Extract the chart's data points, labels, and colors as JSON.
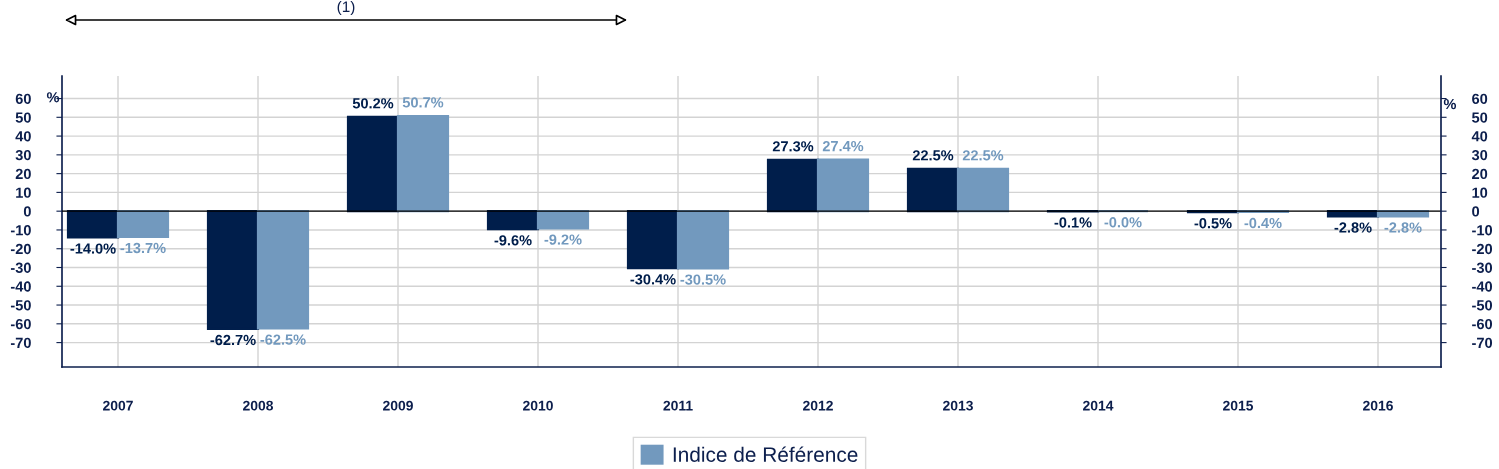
{
  "chart_data": {
    "type": "bar",
    "annotations": [
      "(1)"
    ],
    "ylabel": "%",
    "y2label": "%",
    "categories": [
      "2007",
      "2008",
      "2009",
      "2010",
      "2011",
      "2012",
      "2013",
      "2014",
      "2015",
      "2016"
    ],
    "series": [
      {
        "color": "#001e4b",
        "values": [
          -14.0,
          -62.7,
          50.2,
          -9.6,
          -30.4,
          27.3,
          22.5,
          -0.1,
          -0.5,
          -2.8
        ],
        "value_labels": [
          "-14.0%",
          "-62.7%",
          "50.2%",
          "-9.6%",
          "-30.4%",
          "27.3%",
          "22.5%",
          "-0.1%",
          "-0.5%",
          "-2.8%"
        ]
      },
      {
        "name": "Indice de Référence",
        "color": "#7299be",
        "values": [
          -13.7,
          -62.5,
          50.7,
          -9.2,
          -30.5,
          27.4,
          22.5,
          -0.0,
          -0.4,
          -2.8
        ],
        "value_labels": [
          "-13.7%",
          "-62.5%",
          "50.7%",
          "-9.2%",
          "-30.5%",
          "27.4%",
          "22.5%",
          "-0.0%",
          "-0.4%",
          "-2.8%"
        ]
      }
    ],
    "ylim": [
      -83,
      72
    ],
    "yticks": [
      -70,
      -60,
      -50,
      -40,
      -30,
      -20,
      -10,
      0,
      10,
      20,
      30,
      40,
      50,
      60
    ],
    "y2lim": [
      -83,
      72
    ],
    "y2ticks": [
      -70,
      -60,
      -50,
      -40,
      -30,
      -20,
      -10,
      0,
      10,
      20,
      30,
      40,
      50,
      60
    ],
    "grid": true,
    "legend": "bottom"
  }
}
